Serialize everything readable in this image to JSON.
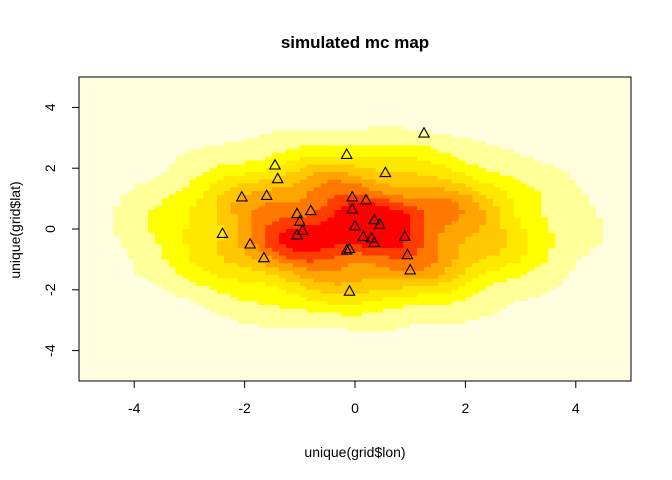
{
  "chart_data": {
    "type": "heatmap",
    "title": "simulated mc map",
    "xlabel": "unique(grid$lon)",
    "ylabel": "unique(grid$lat)",
    "xlim": [
      -5,
      5
    ],
    "ylim": [
      -5,
      5
    ],
    "x_ticks": [
      -4,
      -2,
      0,
      2,
      4
    ],
    "y_ticks": [
      -4,
      -2,
      0,
      2,
      4
    ],
    "x_tick_labels": [
      "-4",
      "-2",
      "0",
      "2",
      "4"
    ],
    "y_tick_labels": [
      "-4",
      "-2",
      "0",
      "2",
      "4"
    ],
    "grid": false,
    "legend": "none",
    "surface": {
      "center": [
        0,
        0
      ],
      "spread_x": 2.1,
      "spread_y": 1.6,
      "levels": 8,
      "palette": [
        "#FFFFE0",
        "#FFFF99",
        "#FFFF00",
        "#FFE800",
        "#FFC800",
        "#FFA500",
        "#FF7800",
        "#FF3C00",
        "#FF0000"
      ]
    },
    "points": {
      "marker": "triangle",
      "x": [
        1.25,
        -0.15,
        0.55,
        -1.45,
        -1.4,
        -2.05,
        -1.6,
        -0.05,
        0.2,
        -1.05,
        -0.8,
        -0.05,
        -1.0,
        0.35,
        0.45,
        0.0,
        -0.95,
        -2.4,
        0.15,
        0.3,
        0.9,
        -1.05,
        -1.9,
        0.35,
        -0.15,
        -0.1,
        0.95,
        -1.65,
        1.0,
        -0.1
      ],
      "y": [
        3.15,
        2.45,
        1.85,
        2.1,
        1.65,
        1.05,
        1.1,
        1.05,
        0.95,
        0.5,
        0.6,
        0.65,
        0.25,
        0.3,
        0.15,
        0.1,
        -0.05,
        -0.15,
        -0.25,
        -0.3,
        -0.25,
        -0.2,
        -0.5,
        -0.45,
        -0.7,
        -0.65,
        -0.85,
        -0.95,
        -1.35,
        -2.05
      ]
    }
  }
}
